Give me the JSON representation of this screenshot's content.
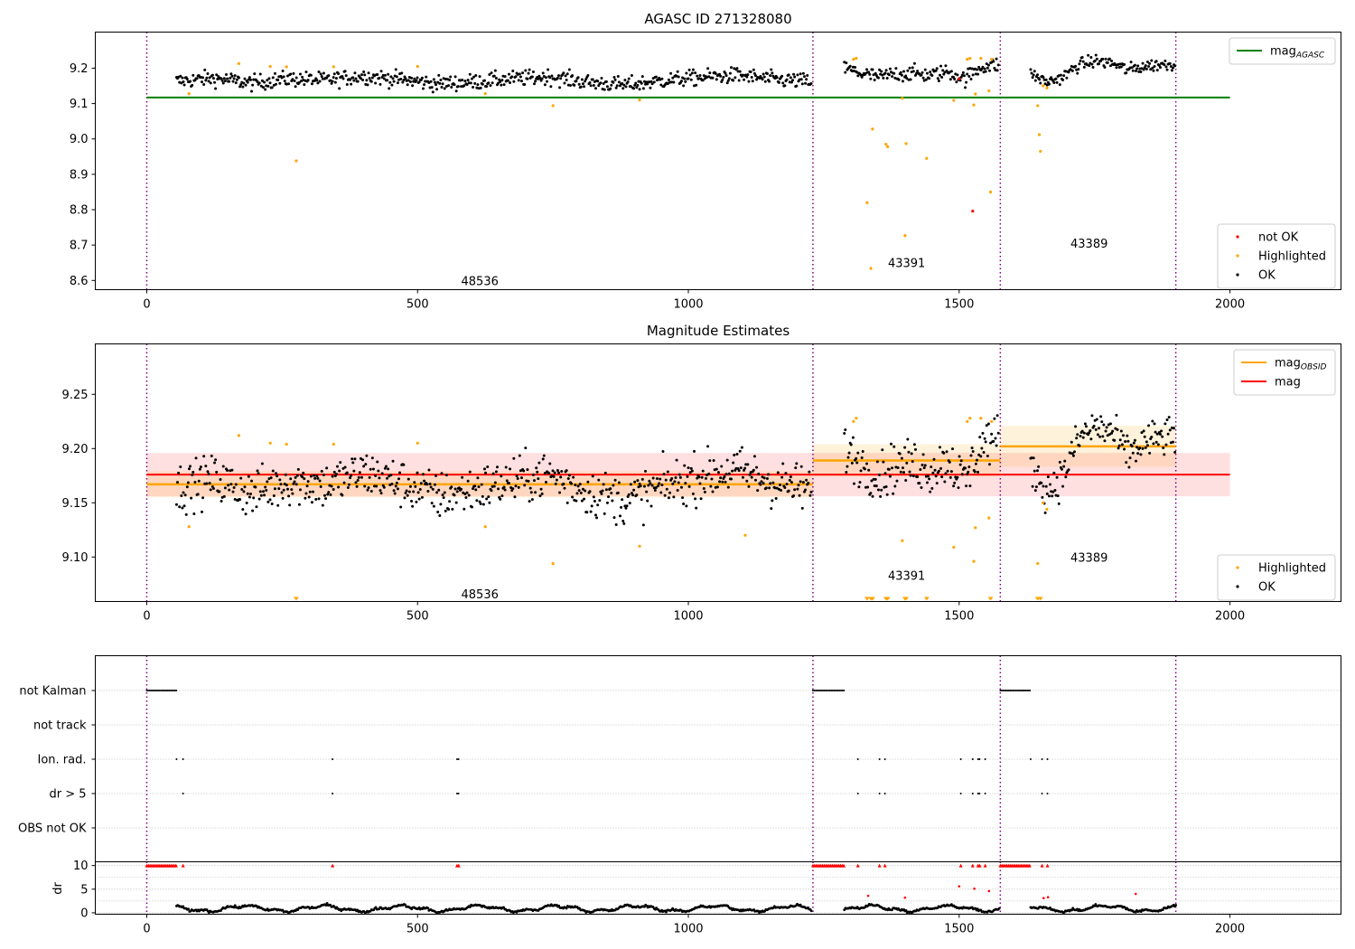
{
  "chart_data": [
    {
      "type": "scatter",
      "title": "AGASC ID 271328080",
      "xlabel": "",
      "ylabel": "",
      "xlim": [
        -95,
        2205
      ],
      "ylim": [
        8.574,
        9.302
      ],
      "xticks": [
        0,
        500,
        1000,
        1500,
        2000
      ],
      "yticks": [
        8.6,
        8.7,
        8.8,
        8.9,
        9.0,
        9.1,
        9.2
      ],
      "ytick_labels": [
        "8.6",
        "8.7",
        "8.8",
        "8.9",
        "9.0",
        "9.1",
        "9.2"
      ],
      "obsid_boundaries": [
        0,
        1230,
        1576,
        1900
      ],
      "obsid_labels": [
        {
          "text": "48536",
          "x": 615,
          "y": 8.6
        },
        {
          "text": "43391",
          "x": 1403,
          "y": 8.65
        },
        {
          "text": "43389",
          "x": 1740,
          "y": 8.705
        }
      ],
      "ok_segments": [
        {
          "x_start": 55,
          "x_end": 1228,
          "levels": [
            9.163,
            9.172,
            9.158,
            9.17,
            9.166,
            9.178,
            9.168,
            9.156,
            9.162,
            9.17,
            9.176,
            9.16,
            9.152,
            9.165,
            9.174,
            9.18,
            9.168,
            9.162
          ],
          "spread": 0.011
        },
        {
          "x_start": 1288,
          "x_end": 1574,
          "levels": [
            9.2,
            9.185,
            9.175,
            9.184,
            9.186,
            9.18,
            9.19,
            9.17,
            9.205,
            9.21
          ],
          "spread": 0.011
        },
        {
          "x_start": 1632,
          "x_end": 1900,
          "levels": [
            9.185,
            9.16,
            9.175,
            9.21,
            9.22,
            9.215,
            9.195,
            9.205,
            9.21,
            9.212
          ],
          "spread": 0.009
        }
      ],
      "highlighted_points": [
        [
          78,
          9.128
        ],
        [
          170,
          9.213
        ],
        [
          228,
          9.205
        ],
        [
          258,
          9.204
        ],
        [
          276,
          8.938
        ],
        [
          345,
          9.204
        ],
        [
          500,
          9.205
        ],
        [
          625,
          9.128
        ],
        [
          750,
          9.094
        ],
        [
          910,
          9.11
        ],
        [
          1305,
          9.225
        ],
        [
          1310,
          9.228
        ],
        [
          1330,
          8.82
        ],
        [
          1337,
          8.634
        ],
        [
          1340,
          9.028
        ],
        [
          1365,
          8.985
        ],
        [
          1368,
          8.978
        ],
        [
          1395,
          9.115
        ],
        [
          1400,
          8.727
        ],
        [
          1402,
          8.987
        ],
        [
          1440,
          8.945
        ],
        [
          1490,
          9.109
        ],
        [
          1515,
          9.225
        ],
        [
          1520,
          9.228
        ],
        [
          1527,
          9.096
        ],
        [
          1530,
          9.127
        ],
        [
          1540,
          9.228
        ],
        [
          1555,
          9.136
        ],
        [
          1558,
          8.85
        ],
        [
          1560,
          9.225
        ],
        [
          1645,
          9.094
        ],
        [
          1648,
          9.012
        ],
        [
          1650,
          8.965
        ],
        [
          1655,
          9.15
        ],
        [
          1662,
          9.144
        ]
      ],
      "not_ok_points": [
        [
          1525,
          8.796
        ],
        [
          1500,
          9.17
        ]
      ],
      "mag_agasc": {
        "value": 9.117,
        "x_range": [
          0,
          2000
        ],
        "color": "#008000"
      },
      "legend_top": [
        {
          "label": "mag",
          "sub": "AGASC",
          "color": "#008000",
          "marker": "line"
        }
      ],
      "legend_bottom": [
        {
          "label": "not OK",
          "color": "#ff0000",
          "marker": "dot"
        },
        {
          "label": "Highlighted",
          "color": "#ffa500",
          "marker": "dot"
        },
        {
          "label": "OK",
          "color": "#000000",
          "marker": "dot"
        }
      ],
      "legend_placement": {
        "top": "top-right",
        "bottom": "lower-right"
      }
    },
    {
      "type": "scatter",
      "title": "Magnitude Estimates",
      "xlabel": "",
      "ylabel": "",
      "xlim": [
        -95,
        2205
      ],
      "ylim": [
        9.059,
        9.2965
      ],
      "xticks": [
        0,
        500,
        1000,
        1500,
        2000
      ],
      "yticks": [
        9.1,
        9.15,
        9.2,
        9.25
      ],
      "ytick_labels": [
        "9.10",
        "9.15",
        "9.20",
        "9.25"
      ],
      "obsid_boundaries": [
        0,
        1230,
        1576,
        1900
      ],
      "obsid_labels": [
        {
          "text": "48536",
          "x": 615,
          "y": 9.066
        },
        {
          "text": "43391",
          "x": 1403,
          "y": 9.083
        },
        {
          "text": "43389",
          "x": 1740,
          "y": 9.1
        }
      ],
      "mag_obsid": [
        {
          "x_range": [
            0,
            1230
          ],
          "value": 9.167,
          "band": [
            9.155,
            9.179
          ]
        },
        {
          "x_range": [
            1230,
            1576
          ],
          "value": 9.189,
          "band": [
            9.174,
            9.204
          ]
        },
        {
          "x_range": [
            1576,
            1900
          ],
          "value": 9.202,
          "band": [
            9.183,
            9.221
          ]
        }
      ],
      "mag": {
        "value": 9.176,
        "band": [
          9.156,
          9.196
        ],
        "x_range": [
          0,
          2000
        ]
      },
      "highlighted_points": [
        [
          78,
          9.128
        ],
        [
          170,
          9.212
        ],
        [
          228,
          9.205
        ],
        [
          258,
          9.204
        ],
        [
          345,
          9.204
        ],
        [
          500,
          9.205
        ],
        [
          625,
          9.128
        ],
        [
          750,
          9.094
        ],
        [
          910,
          9.11
        ],
        [
          1105,
          9.12
        ],
        [
          1305,
          9.225
        ],
        [
          1310,
          9.228
        ],
        [
          1395,
          9.115
        ],
        [
          1490,
          9.109
        ],
        [
          1515,
          9.225
        ],
        [
          1520,
          9.228
        ],
        [
          1527,
          9.096
        ],
        [
          1530,
          9.127
        ],
        [
          1540,
          9.228
        ],
        [
          1555,
          9.136
        ],
        [
          1560,
          9.225
        ],
        [
          1645,
          9.094
        ],
        [
          1655,
          9.15
        ],
        [
          1662,
          9.144
        ]
      ],
      "below_range_x": [
        276,
        1330,
        1337,
        1340,
        1365,
        1368,
        1400,
        1402,
        1440,
        1558,
        1645,
        1650
      ],
      "legend_top": [
        {
          "label": "mag",
          "sub": "OBSID",
          "color": "#ffa500",
          "marker": "line"
        },
        {
          "label": "mag",
          "sub": "",
          "color": "#ff0000",
          "marker": "line"
        }
      ],
      "legend_bottom": [
        {
          "label": "Highlighted",
          "color": "#ffa500",
          "marker": "dot"
        },
        {
          "label": "OK",
          "color": "#000000",
          "marker": "dot"
        }
      ],
      "legend_placement": {
        "top": "top-right",
        "bottom": "lower-right"
      }
    },
    {
      "type": "scatter",
      "title": "",
      "xlabel": "",
      "ylabel": "",
      "xlim": [
        -95,
        2205
      ],
      "categories": [
        "not Kalman",
        "not track",
        "Ion. rad.",
        "dr > 5",
        "OBS not OK"
      ],
      "obsid_boundaries": [
        0,
        1230,
        1576,
        1900
      ],
      "flags": {
        "not Kalman": [
          [
            0,
            55
          ],
          [
            1230,
            1288
          ],
          [
            1576,
            1632
          ]
        ],
        "not track": [],
        "Ion. rad.": [
          [
            55,
            55
          ],
          [
            67,
            67
          ],
          [
            343,
            343
          ],
          [
            573,
            578
          ],
          [
            1313,
            1313
          ],
          [
            1353,
            1353
          ],
          [
            1363,
            1363
          ],
          [
            1503,
            1503
          ],
          [
            1525,
            1525
          ],
          [
            1535,
            1538
          ],
          [
            1548,
            1548
          ],
          [
            1632,
            1632
          ],
          [
            1653,
            1653
          ],
          [
            1663,
            1663
          ]
        ],
        "dr > 5": [
          [
            67,
            67
          ],
          [
            343,
            343
          ],
          [
            573,
            578
          ],
          [
            1313,
            1313
          ],
          [
            1353,
            1353
          ],
          [
            1363,
            1363
          ],
          [
            1503,
            1503
          ],
          [
            1525,
            1525
          ],
          [
            1535,
            1538
          ],
          [
            1548,
            1548
          ],
          [
            1653,
            1653
          ],
          [
            1663,
            1663
          ]
        ],
        "OBS not OK": []
      }
    },
    {
      "type": "scatter",
      "title": "",
      "xlabel": "",
      "ylabel": "dr",
      "xlim": [
        -95,
        2205
      ],
      "ylim": [
        -0.3,
        10.8
      ],
      "xticks": [
        0,
        500,
        1000,
        1500,
        2000
      ],
      "yticks": [
        0,
        5,
        10
      ],
      "ytick_labels": [
        "0",
        "5",
        "10"
      ],
      "obsid_boundaries": [
        0,
        1230,
        1576,
        1900
      ],
      "dr_clipped_x": [
        [
          0,
          55
        ],
        [
          67,
          67
        ],
        [
          343,
          343
        ],
        [
          573,
          578
        ],
        [
          1230,
          1288
        ],
        [
          1313,
          1313
        ],
        [
          1353,
          1353
        ],
        [
          1363,
          1363
        ],
        [
          1503,
          1503
        ],
        [
          1525,
          1525
        ],
        [
          1535,
          1538
        ],
        [
          1548,
          1548
        ],
        [
          1576,
          1632
        ],
        [
          1653,
          1653
        ],
        [
          1663,
          1663
        ]
      ],
      "dr_segments": [
        [
          55,
          1228
        ],
        [
          1288,
          1574
        ],
        [
          1632,
          1900
        ]
      ],
      "dr_outliers": [
        [
          1332,
          3.6
        ],
        [
          1400,
          3.2
        ],
        [
          1500,
          5.6
        ],
        [
          1528,
          5.1
        ],
        [
          1555,
          4.6
        ],
        [
          1656,
          3.1
        ],
        [
          1664,
          3.3
        ],
        [
          1826,
          4.0
        ]
      ]
    }
  ]
}
